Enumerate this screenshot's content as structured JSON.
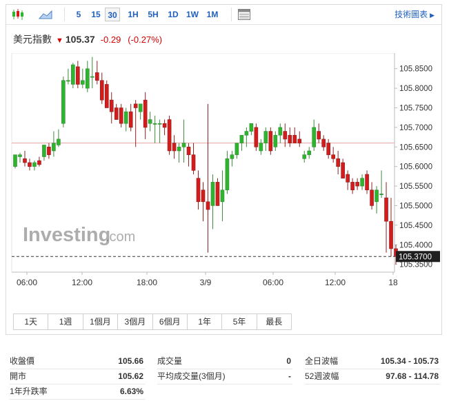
{
  "toolbar": {
    "timeframes": [
      "5",
      "15",
      "30",
      "1H",
      "5H",
      "1D",
      "1W",
      "1M"
    ],
    "active_timeframe": "30",
    "tech_chart_link": "技術圖表"
  },
  "quote": {
    "name": "美元指數",
    "last": "105.37",
    "change": "-0.29",
    "change_pct": "(-0.27%)",
    "down_color": "#d40000"
  },
  "chart": {
    "watermark_brand": "Investing",
    "watermark_suffix": ".com",
    "current_price_label": "105.3700",
    "y_ticks": [
      "105.8500",
      "105.8000",
      "105.7500",
      "105.7000",
      "105.6500",
      "105.6000",
      "105.5500",
      "105.5000",
      "105.4500",
      "105.4000",
      "105.3500"
    ],
    "x_ticks": [
      "06:00",
      "12:00",
      "18:00",
      "3/9",
      "06:00",
      "12:00",
      "18"
    ],
    "up_color": "#2db52d",
    "down_color": "#d41c1c"
  },
  "chart_data": {
    "type": "candlestick",
    "y_range": [
      105.33,
      105.89
    ],
    "reference_line": 105.66,
    "current_price": 105.37,
    "x_ticks": [
      "06:00",
      "12:00",
      "18:00",
      "3/9",
      "06:00",
      "12:00",
      "18"
    ],
    "candles": [
      {
        "o": 105.6,
        "h": 105.625,
        "l": 105.595,
        "c": 105.63
      },
      {
        "o": 105.625,
        "h": 105.635,
        "l": 105.61,
        "c": 105.63
      },
      {
        "o": 105.62,
        "h": 105.64,
        "l": 105.6,
        "c": 105.61
      },
      {
        "o": 105.61,
        "h": 105.62,
        "l": 105.59,
        "c": 105.6
      },
      {
        "o": 105.6,
        "h": 105.615,
        "l": 105.59,
        "c": 105.61
      },
      {
        "o": 105.615,
        "h": 105.625,
        "l": 105.6,
        "c": 105.605
      },
      {
        "o": 105.625,
        "h": 105.655,
        "l": 105.615,
        "c": 105.655
      },
      {
        "o": 105.65,
        "h": 105.66,
        "l": 105.62,
        "c": 105.63
      },
      {
        "o": 105.64,
        "h": 105.69,
        "l": 105.625,
        "c": 105.66
      },
      {
        "o": 105.655,
        "h": 105.695,
        "l": 105.65,
        "c": 105.67
      },
      {
        "o": 105.71,
        "h": 105.83,
        "l": 105.7,
        "c": 105.82
      },
      {
        "o": 105.82,
        "h": 105.85,
        "l": 105.81,
        "c": 105.82
      },
      {
        "o": 105.81,
        "h": 105.865,
        "l": 105.8,
        "c": 105.86
      },
      {
        "o": 105.855,
        "h": 105.87,
        "l": 105.8,
        "c": 105.81
      },
      {
        "o": 105.81,
        "h": 105.85,
        "l": 105.8,
        "c": 105.82
      },
      {
        "o": 105.8,
        "h": 105.87,
        "l": 105.79,
        "c": 105.85
      },
      {
        "o": 105.83,
        "h": 105.88,
        "l": 105.8,
        "c": 105.83
      },
      {
        "o": 105.84,
        "h": 105.87,
        "l": 105.81,
        "c": 105.82
      },
      {
        "o": 105.82,
        "h": 105.84,
        "l": 105.76,
        "c": 105.77
      },
      {
        "o": 105.81,
        "h": 105.82,
        "l": 105.75,
        "c": 105.75
      },
      {
        "o": 105.77,
        "h": 105.79,
        "l": 105.71,
        "c": 105.74
      },
      {
        "o": 105.75,
        "h": 105.76,
        "l": 105.72,
        "c": 105.72
      },
      {
        "o": 105.75,
        "h": 105.76,
        "l": 105.7,
        "c": 105.71
      },
      {
        "o": 105.71,
        "h": 105.75,
        "l": 105.69,
        "c": 105.74
      },
      {
        "o": 105.74,
        "h": 105.76,
        "l": 105.69,
        "c": 105.7
      },
      {
        "o": 105.76,
        "h": 105.77,
        "l": 105.65,
        "c": 105.75
      },
      {
        "o": 105.74,
        "h": 105.76,
        "l": 105.72,
        "c": 105.76
      },
      {
        "o": 105.77,
        "h": 105.79,
        "l": 105.67,
        "c": 105.7
      },
      {
        "o": 105.71,
        "h": 105.74,
        "l": 105.69,
        "c": 105.72
      },
      {
        "o": 105.71,
        "h": 105.73,
        "l": 105.66,
        "c": 105.71
      },
      {
        "o": 105.71,
        "h": 105.72,
        "l": 105.66,
        "c": 105.71
      },
      {
        "o": 105.71,
        "h": 105.72,
        "l": 105.68,
        "c": 105.7
      },
      {
        "o": 105.72,
        "h": 105.73,
        "l": 105.63,
        "c": 105.64
      },
      {
        "o": 105.66,
        "h": 105.68,
        "l": 105.62,
        "c": 105.64
      },
      {
        "o": 105.64,
        "h": 105.66,
        "l": 105.61,
        "c": 105.65
      },
      {
        "o": 105.65,
        "h": 105.72,
        "l": 105.61,
        "c": 105.66
      },
      {
        "o": 105.65,
        "h": 105.66,
        "l": 105.6,
        "c": 105.63
      },
      {
        "o": 105.63,
        "h": 105.66,
        "l": 105.58,
        "c": 105.59
      },
      {
        "o": 105.57,
        "h": 105.59,
        "l": 105.49,
        "c": 105.51
      },
      {
        "o": 105.54,
        "h": 105.56,
        "l": 105.46,
        "c": 105.51
      },
      {
        "o": 105.51,
        "h": 105.76,
        "l": 105.38,
        "c": 105.49
      },
      {
        "o": 105.5,
        "h": 105.58,
        "l": 105.44,
        "c": 105.56
      },
      {
        "o": 105.56,
        "h": 105.57,
        "l": 105.5,
        "c": 105.5
      },
      {
        "o": 105.51,
        "h": 105.59,
        "l": 105.46,
        "c": 105.54
      },
      {
        "o": 105.54,
        "h": 105.64,
        "l": 105.53,
        "c": 105.62
      },
      {
        "o": 105.62,
        "h": 105.64,
        "l": 105.6,
        "c": 105.63
      },
      {
        "o": 105.63,
        "h": 105.66,
        "l": 105.62,
        "c": 105.66
      },
      {
        "o": 105.66,
        "h": 105.68,
        "l": 105.64,
        "c": 105.68
      },
      {
        "o": 105.68,
        "h": 105.7,
        "l": 105.65,
        "c": 105.69
      },
      {
        "o": 105.69,
        "h": 105.71,
        "l": 105.68,
        "c": 105.71
      },
      {
        "o": 105.7,
        "h": 105.71,
        "l": 105.64,
        "c": 105.65
      },
      {
        "o": 105.64,
        "h": 105.67,
        "l": 105.63,
        "c": 105.66
      },
      {
        "o": 105.66,
        "h": 105.7,
        "l": 105.64,
        "c": 105.69
      },
      {
        "o": 105.69,
        "h": 105.7,
        "l": 105.63,
        "c": 105.64
      },
      {
        "o": 105.65,
        "h": 105.69,
        "l": 105.64,
        "c": 105.68
      },
      {
        "o": 105.68,
        "h": 105.71,
        "l": 105.66,
        "c": 105.7
      },
      {
        "o": 105.69,
        "h": 105.71,
        "l": 105.65,
        "c": 105.67
      },
      {
        "o": 105.68,
        "h": 105.7,
        "l": 105.65,
        "c": 105.66
      },
      {
        "o": 105.68,
        "h": 105.7,
        "l": 105.66,
        "c": 105.66
      },
      {
        "o": 105.67,
        "h": 105.69,
        "l": 105.65,
        "c": 105.66
      },
      {
        "o": 105.62,
        "h": 105.64,
        "l": 105.61,
        "c": 105.63
      },
      {
        "o": 105.63,
        "h": 105.65,
        "l": 105.62,
        "c": 105.64
      },
      {
        "o": 105.65,
        "h": 105.72,
        "l": 105.64,
        "c": 105.7
      },
      {
        "o": 105.69,
        "h": 105.71,
        "l": 105.66,
        "c": 105.67
      },
      {
        "o": 105.67,
        "h": 105.68,
        "l": 105.64,
        "c": 105.65
      },
      {
        "o": 105.66,
        "h": 105.67,
        "l": 105.62,
        "c": 105.63
      },
      {
        "o": 105.63,
        "h": 105.65,
        "l": 105.61,
        "c": 105.62
      },
      {
        "o": 105.62,
        "h": 105.64,
        "l": 105.58,
        "c": 105.6
      },
      {
        "o": 105.61,
        "h": 105.62,
        "l": 105.57,
        "c": 105.57
      },
      {
        "o": 105.58,
        "h": 105.59,
        "l": 105.54,
        "c": 105.56
      },
      {
        "o": 105.56,
        "h": 105.57,
        "l": 105.53,
        "c": 105.54
      },
      {
        "o": 105.56,
        "h": 105.57,
        "l": 105.54,
        "c": 105.55
      },
      {
        "o": 105.55,
        "h": 105.58,
        "l": 105.54,
        "c": 105.57
      },
      {
        "o": 105.58,
        "h": 105.59,
        "l": 105.53,
        "c": 105.54
      },
      {
        "o": 105.54,
        "h": 105.56,
        "l": 105.49,
        "c": 105.5
      },
      {
        "o": 105.51,
        "h": 105.55,
        "l": 105.48,
        "c": 105.54
      },
      {
        "o": 105.53,
        "h": 105.59,
        "l": 105.52,
        "c": 105.53
      },
      {
        "o": 105.52,
        "h": 105.56,
        "l": 105.38,
        "c": 105.46
      },
      {
        "o": 105.46,
        "h": 105.52,
        "l": 105.37,
        "c": 105.39
      },
      {
        "o": 105.39,
        "h": 105.4,
        "l": 105.35,
        "c": 105.37
      }
    ]
  },
  "periods": [
    "1天",
    "1週",
    "1個月",
    "3個月",
    "6個月",
    "1年",
    "5年",
    "最長"
  ],
  "stats": {
    "col1": [
      {
        "label": "收盤價",
        "value": "105.66"
      },
      {
        "label": "開市",
        "value": "105.62"
      },
      {
        "label": "1年升跌率",
        "value": "6.63%"
      }
    ],
    "col2": [
      {
        "label": "成交量",
        "value": "0"
      },
      {
        "label": "平均成交量(3個月)",
        "value": "-"
      }
    ],
    "col3": [
      {
        "label": "全日波幅",
        "value": "105.34 - 105.73"
      },
      {
        "label": "52週波幅",
        "value": "97.68 - 114.78"
      }
    ]
  }
}
